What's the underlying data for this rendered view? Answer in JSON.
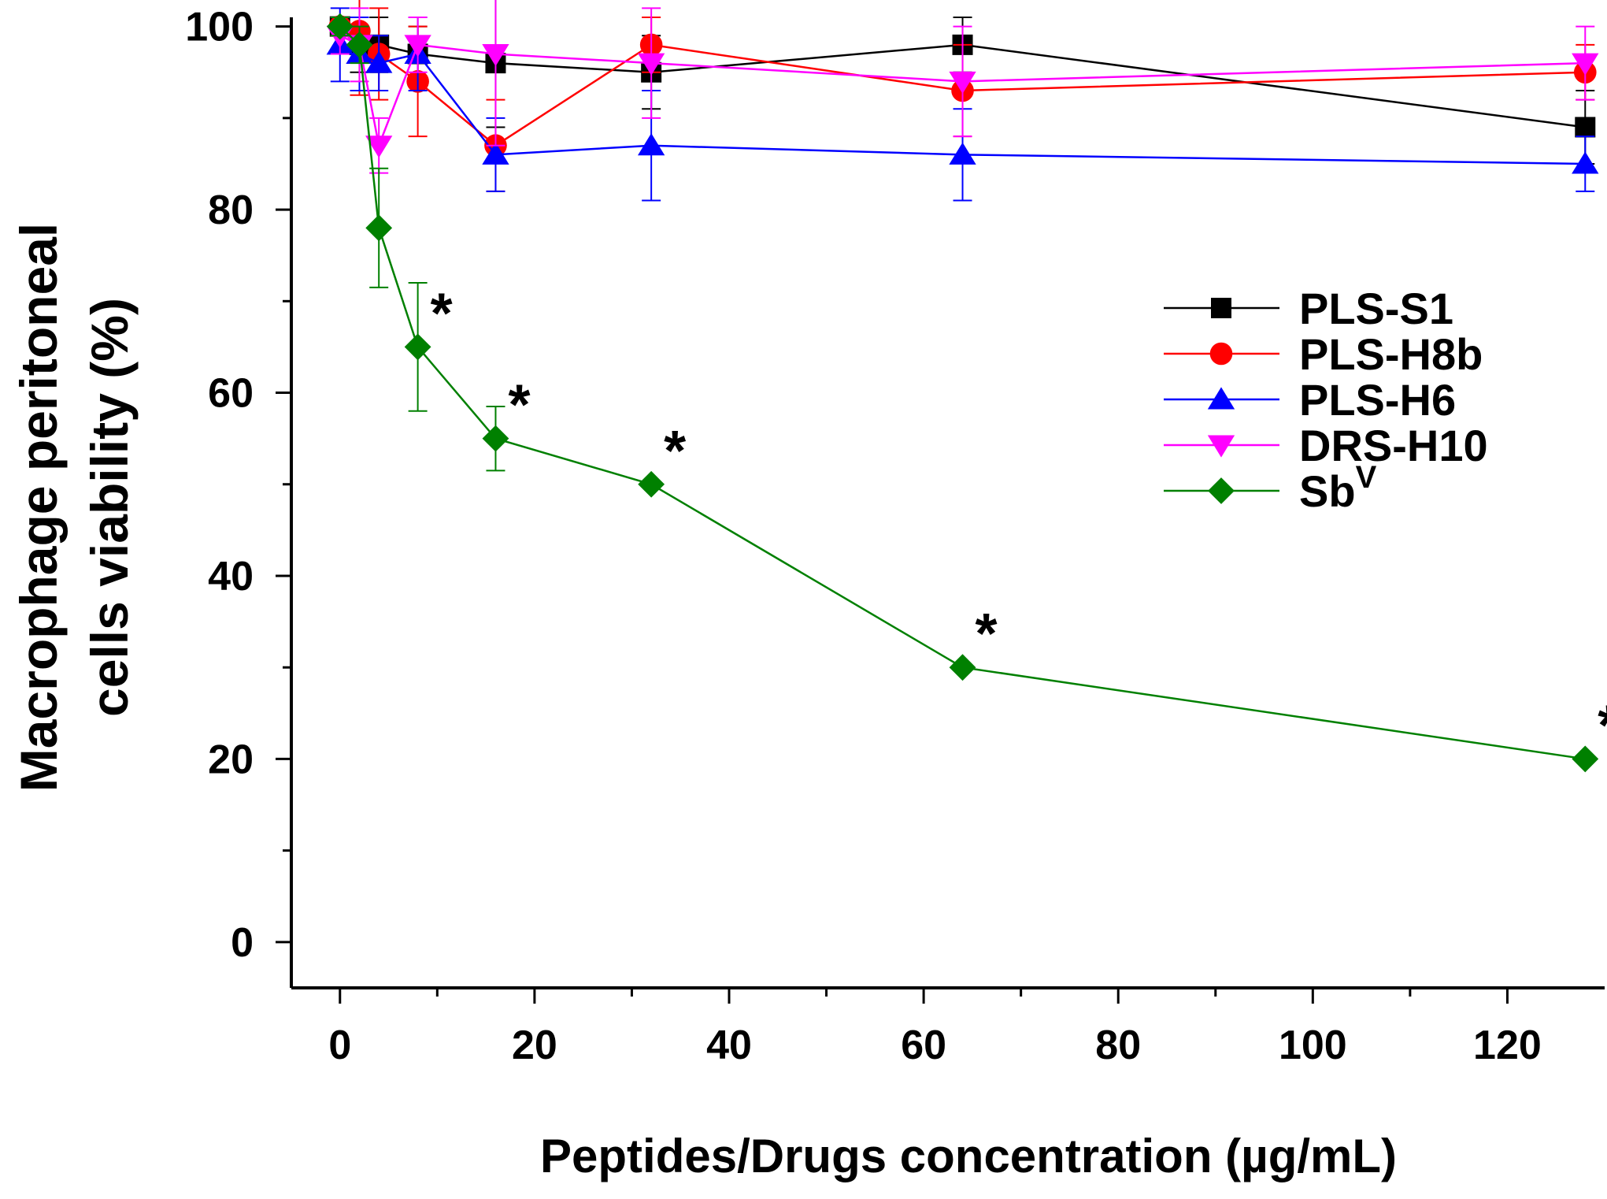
{
  "chart_data": {
    "type": "line",
    "title": "",
    "xlabel": "Peptides/Drugs concentration (µg/mL)",
    "ylabel_line1": "Macrophage peritoneal",
    "ylabel_line2": "cells viability (%)",
    "xlim": [
      -5,
      130
    ],
    "ylim": [
      -5,
      101
    ],
    "xticks": [
      0,
      20,
      40,
      60,
      80,
      100,
      120
    ],
    "yticks": [
      0,
      20,
      40,
      60,
      80,
      100
    ],
    "x": [
      0,
      2,
      4,
      8,
      16,
      32,
      64,
      128
    ],
    "series": [
      {
        "name": "PLS-S1",
        "color": "#000000",
        "marker": "square",
        "values": [
          100,
          98,
          98,
          97,
          96,
          95,
          98,
          89
        ],
        "errors": [
          1,
          3,
          3,
          3,
          7,
          4,
          3,
          4
        ]
      },
      {
        "name": "PLS-H8b",
        "color": "#ff0000",
        "marker": "circle",
        "values": [
          100,
          99.5,
          97,
          94,
          87,
          98,
          93,
          95
        ],
        "errors": [
          1,
          7,
          5,
          6,
          5,
          3,
          5,
          3
        ]
      },
      {
        "name": "PLS-H6",
        "color": "#0000ff",
        "marker": "triangle-up",
        "values": [
          98,
          97,
          96,
          97,
          86,
          87,
          86,
          85
        ],
        "errors": [
          4,
          4,
          3,
          4,
          4,
          6,
          5,
          3
        ]
      },
      {
        "name": "DRS-H10",
        "color": "#ff00ff",
        "marker": "triangle-down",
        "values": [
          99,
          98,
          87,
          98,
          97,
          96,
          94,
          96
        ],
        "errors": [
          2,
          4,
          3,
          3,
          10,
          6,
          6,
          4
        ]
      },
      {
        "name": "Sb",
        "superscript": "V",
        "color": "#008000",
        "marker": "diamond",
        "values": [
          100,
          98,
          78,
          65,
          55,
          50,
          30,
          20
        ],
        "errors": [
          1,
          2,
          6.5,
          7,
          3.5,
          0,
          0,
          0
        ]
      }
    ],
    "annotations": [
      {
        "text": "*",
        "x": 8,
        "y": 65
      },
      {
        "text": "*",
        "x": 16,
        "y": 55
      },
      {
        "text": "*",
        "x": 32,
        "y": 50
      },
      {
        "text": "*",
        "x": 64,
        "y": 30
      },
      {
        "text": "*",
        "x": 128,
        "y": 20
      }
    ],
    "legend_position": "right"
  }
}
